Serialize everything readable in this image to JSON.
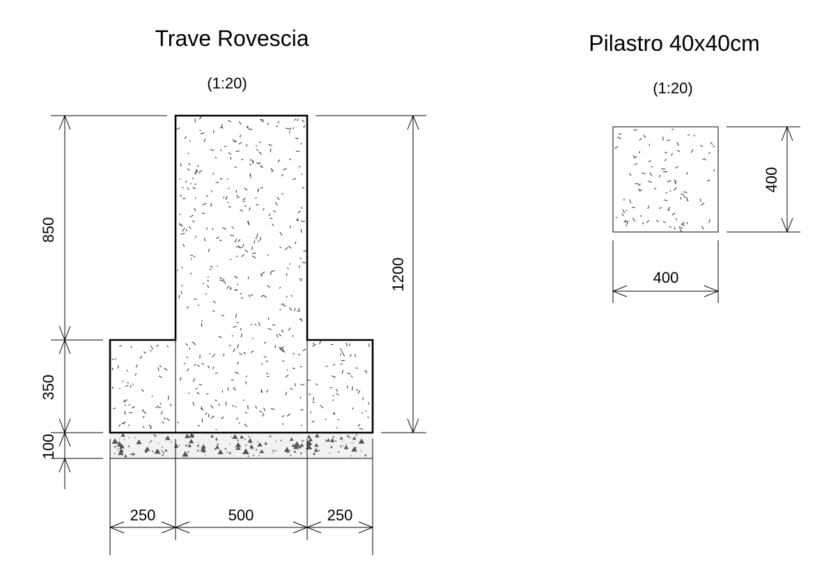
{
  "beam": {
    "title": "Trave Rovescia",
    "scale": "(1:20)",
    "dims": {
      "h_upper": "850",
      "h_lower": "350",
      "h_lean": "100",
      "h_total": "1200",
      "w_left": "250",
      "w_center": "500",
      "w_right": "250"
    }
  },
  "pillar": {
    "title": "Pilastro 40x40cm",
    "scale": "(1:20)",
    "dims": {
      "height": "400",
      "width": "400"
    }
  }
}
